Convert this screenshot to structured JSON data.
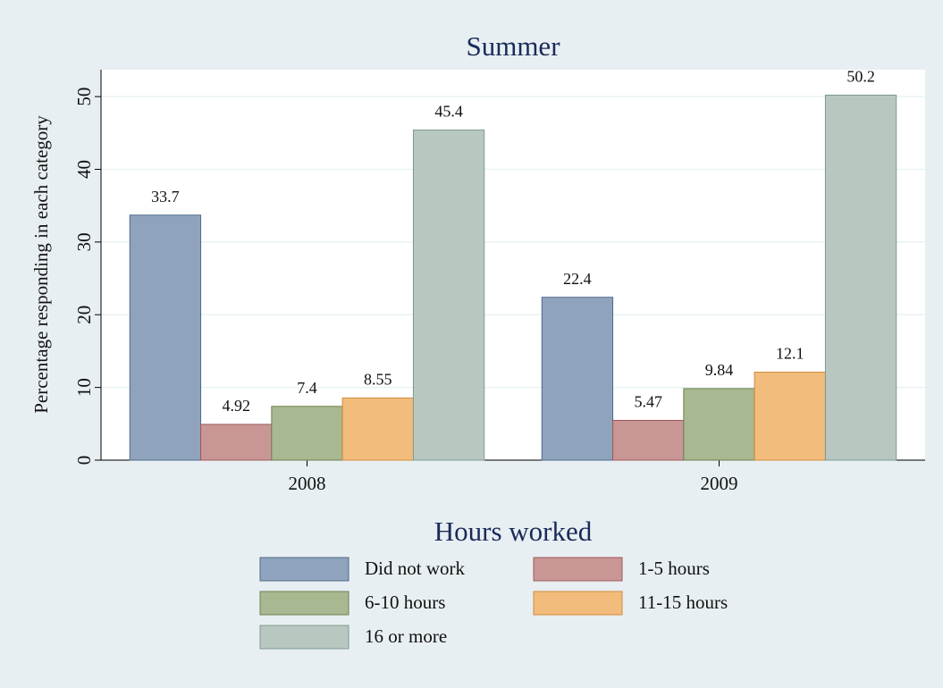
{
  "chart_data": {
    "type": "bar",
    "title": "Summer",
    "y_label": "Percentage responding in each category",
    "categories": [
      "2008",
      "2009"
    ],
    "series": [
      {
        "name": "Did not work",
        "color": "#8fa4bc",
        "edgecolor": "#4e6a8a",
        "values": [
          33.7,
          22.4
        ]
      },
      {
        "name": "1-5 hours",
        "color": "#c99696",
        "edgecolor": "#9e5858",
        "values": [
          4.92,
          5.47
        ]
      },
      {
        "name": "6-10 hours",
        "color": "#a8b890",
        "edgecolor": "#6d8050",
        "values": [
          7.4,
          9.84
        ]
      },
      {
        "name": "11-15 hours",
        "color": "#f2bd7c",
        "edgecolor": "#d08a3a",
        "values": [
          8.55,
          12.1
        ]
      },
      {
        "name": "16 or more",
        "color": "#b8c8c0",
        "edgecolor": "#7f9890",
        "values": [
          45.4,
          50.2
        ]
      }
    ],
    "legend_title": "Hours worked",
    "ylim": [
      0,
      53.7
    ],
    "yticks": [
      0,
      10,
      20,
      30,
      40,
      50
    ],
    "grid": true
  }
}
